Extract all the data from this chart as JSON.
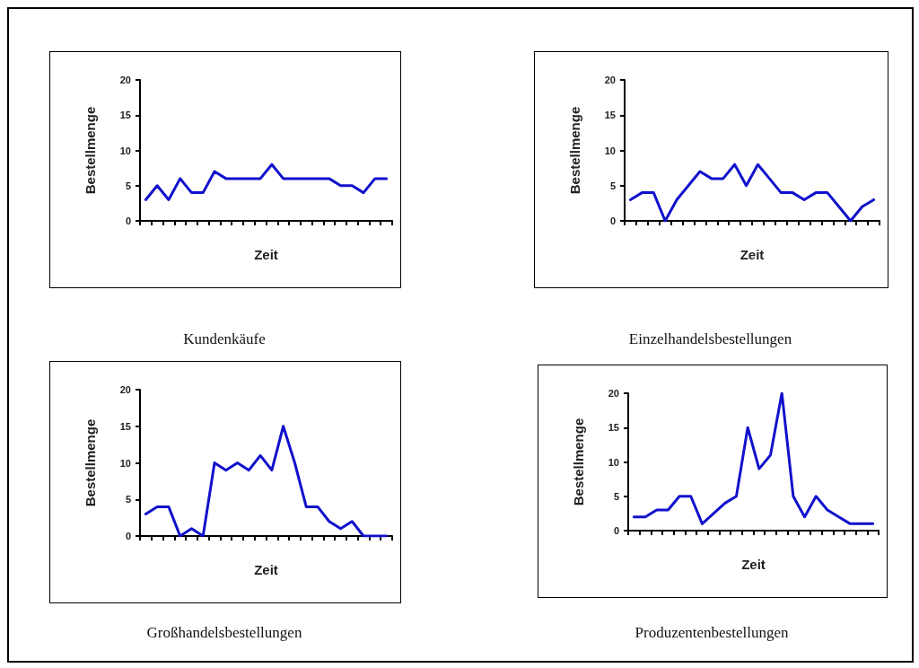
{
  "chart_data": [
    {
      "type": "line",
      "title": "Kundenkäufe",
      "xlabel": "Zeit",
      "ylabel": "Bestellmenge",
      "categories": [
        null,
        null,
        null,
        null,
        null,
        null,
        null,
        null,
        null,
        null,
        null,
        null,
        null,
        null,
        null,
        null,
        null,
        null,
        null,
        null,
        null,
        null
      ],
      "series": [
        {
          "color": "#1111cc",
          "values": [
            3,
            5,
            3,
            6,
            4,
            4,
            7,
            6,
            6,
            6,
            6,
            8,
            6,
            6,
            6,
            6,
            6,
            5,
            5,
            4,
            6,
            6
          ]
        }
      ],
      "ylim": [
        0,
        20
      ],
      "yticks": [
        0,
        5,
        10,
        15,
        20
      ],
      "grid": false,
      "tick_labels": "y",
      "marker": "none",
      "line_style": "solid"
    },
    {
      "type": "line",
      "title": "Einzelhandelsbestellungen",
      "xlabel": "Zeit",
      "ylabel": "Bestellmenge",
      "categories": [
        null,
        null,
        null,
        null,
        null,
        null,
        null,
        null,
        null,
        null,
        null,
        null,
        null,
        null,
        null,
        null,
        null,
        null,
        null,
        null,
        null,
        null
      ],
      "series": [
        {
          "color": "#1111cc",
          "values": [
            3,
            4,
            4,
            0,
            3,
            5,
            7,
            6,
            6,
            8,
            5,
            8,
            6,
            4,
            4,
            3,
            4,
            4,
            2,
            0,
            2,
            3
          ]
        }
      ],
      "ylim": [
        0,
        20
      ],
      "yticks": [
        0,
        5,
        10,
        15,
        20
      ],
      "grid": false,
      "tick_labels": "y",
      "marker": "none",
      "line_style": "solid"
    },
    {
      "type": "line",
      "title": "Großhandelsbestellungen",
      "xlabel": "Zeit",
      "ylabel": "Bestellmenge",
      "categories": [
        null,
        null,
        null,
        null,
        null,
        null,
        null,
        null,
        null,
        null,
        null,
        null,
        null,
        null,
        null,
        null,
        null,
        null,
        null,
        null,
        null,
        null
      ],
      "series": [
        {
          "color": "#1111cc",
          "values": [
            3,
            4,
            4,
            0,
            1,
            0,
            10,
            9,
            10,
            9,
            11,
            9,
            15,
            10,
            4,
            4,
            2,
            1,
            2,
            0,
            0,
            0
          ]
        }
      ],
      "ylim": [
        0,
        20
      ],
      "yticks": [
        0,
        5,
        10,
        15,
        20
      ],
      "grid": false,
      "tick_labels": "y",
      "marker": "none",
      "line_style": "solid"
    },
    {
      "type": "line",
      "title": "Produzentenbestellungen",
      "xlabel": "Zeit",
      "ylabel": "Bestellmenge",
      "categories": [
        null,
        null,
        null,
        null,
        null,
        null,
        null,
        null,
        null,
        null,
        null,
        null,
        null,
        null,
        null,
        null,
        null,
        null,
        null,
        null,
        null,
        null
      ],
      "series": [
        {
          "color": "#1111cc",
          "values": [
            2,
            2,
            3,
            3,
            5,
            5,
            1,
            2.5,
            4,
            5,
            15,
            9,
            11,
            20,
            5,
            2,
            5,
            3,
            2,
            1,
            1,
            1
          ]
        }
      ],
      "ylim": [
        0,
        20
      ],
      "yticks": [
        0,
        5,
        10,
        15,
        20
      ],
      "grid": false,
      "tick_labels": "y",
      "marker": "none",
      "line_style": "solid"
    }
  ]
}
